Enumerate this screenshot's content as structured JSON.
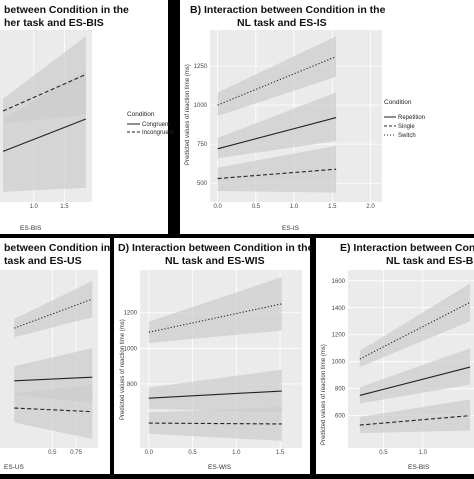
{
  "figure": {
    "legends": [
      {
        "title": "Condition",
        "entries": [
          "Congruent",
          "Incongruent"
        ]
      },
      {
        "title": "Condition",
        "entries": [
          "Repetition",
          "Single",
          "Switch"
        ]
      }
    ]
  },
  "colors": {
    "background": "#000000",
    "card": "#ffffff",
    "plot_bg": "#ebebeb",
    "band": "#cccccc",
    "line": "#222222",
    "grid": "#ffffff"
  },
  "chart_data": [
    {
      "type": "line",
      "title_lines": [
        "between Condition in the",
        "her task and ES-BIS"
      ],
      "xlabel": "ES-BIS",
      "ylabel": "",
      "x_ticks": [
        "1.0",
        "1.5"
      ],
      "y_ticks": [],
      "series": [
        {
          "name": "Congruent",
          "dash": "solid",
          "points": [
            [
              0.5,
              700
            ],
            [
              1.85,
              860
            ]
          ],
          "band_lo": [
            500,
            520
          ],
          "band_hi": [
            860,
            1100
          ]
        },
        {
          "name": "Incongruent",
          "dash": "dashed",
          "points": [
            [
              0.5,
              900
            ],
            [
              1.85,
              1080
            ]
          ],
          "band_lo": [
            840,
            880
          ],
          "band_hi": [
            960,
            1270
          ]
        }
      ]
    },
    {
      "type": "line",
      "title_lines": [
        "B) Interaction between Condition in the",
        "NL task and ES-IS"
      ],
      "xlabel": "ES-IS",
      "ylabel": "Predicted values of reaction time (ms)",
      "x_ticks": [
        "0.0",
        "0.5",
        "1.0",
        "1.5",
        "2.0"
      ],
      "y_ticks": [
        "500",
        "750",
        "1000",
        "1250"
      ],
      "series": [
        {
          "name": "Repetition",
          "dash": "solid",
          "points": [
            [
              0,
              720
            ],
            [
              1.55,
              920
            ]
          ],
          "band_lo": [
            660,
            770
          ],
          "band_hi": [
            790,
            1080
          ]
        },
        {
          "name": "Single",
          "dash": "dashed",
          "points": [
            [
              0,
              530
            ],
            [
              1.55,
              590
            ]
          ],
          "band_lo": [
            450,
            440
          ],
          "band_hi": [
            600,
            740
          ]
        },
        {
          "name": "Switch",
          "dash": "dotted",
          "points": [
            [
              0,
              1000
            ],
            [
              1.55,
              1310
            ]
          ],
          "band_lo": [
            930,
            1180
          ],
          "band_hi": [
            1080,
            1440
          ]
        }
      ]
    },
    {
      "type": "line",
      "title_lines": [
        "between Condition in the",
        "task and ES-US"
      ],
      "xlabel": "ES-US",
      "ylabel": "",
      "x_ticks": [
        "0.5",
        "0.75"
      ],
      "y_ticks": [],
      "series": [
        {
          "name": "Switch",
          "dash": "dotted",
          "points": [
            [
              0.1,
              1010
            ],
            [
              0.92,
              1170
            ]
          ],
          "band_lo": [
            960,
            1070
          ],
          "band_hi": [
            1060,
            1270
          ]
        },
        {
          "name": "Repetition",
          "dash": "solid",
          "points": [
            [
              0.1,
              720
            ],
            [
              0.92,
              740
            ]
          ],
          "band_lo": [
            640,
            600
          ],
          "band_hi": [
            800,
            900
          ]
        },
        {
          "name": "Single",
          "dash": "dashed",
          "points": [
            [
              0.1,
              570
            ],
            [
              0.92,
              550
            ]
          ],
          "band_lo": [
            490,
            400
          ],
          "band_hi": [
            650,
            700
          ]
        }
      ]
    },
    {
      "type": "line",
      "title_lines": [
        "D) Interaction between Condition in the",
        "NL task and ES-WIS"
      ],
      "xlabel": "ES-WIS",
      "ylabel": "Predicted values of reaction time (ms)",
      "x_ticks": [
        "0.0",
        "0.5",
        "1.0",
        "1.5"
      ],
      "y_ticks": [
        "800",
        "1000",
        "1200"
      ],
      "series": [
        {
          "name": "Switch",
          "dash": "dotted",
          "points": [
            [
              0,
              1090
            ],
            [
              1.52,
              1250
            ]
          ],
          "band_lo": [
            1030,
            1100
          ],
          "band_hi": [
            1150,
            1400
          ]
        },
        {
          "name": "Repetition",
          "dash": "solid",
          "points": [
            [
              0,
              720
            ],
            [
              1.52,
              760
            ]
          ],
          "band_lo": [
            660,
            640
          ],
          "band_hi": [
            780,
            880
          ]
        },
        {
          "name": "Single",
          "dash": "dashed",
          "points": [
            [
              0,
              580
            ],
            [
              1.52,
              575
            ]
          ],
          "band_lo": [
            520,
            480
          ],
          "band_hi": [
            640,
            670
          ]
        }
      ]
    },
    {
      "type": "line",
      "title_lines": [
        "E) Interaction between Conditi",
        "NL task and ES-BIS"
      ],
      "xlabel": "ES-BIS",
      "ylabel": "Predicted values of reaction time (ms)",
      "x_ticks": [
        "0.5",
        "1.0"
      ],
      "y_ticks": [
        "600",
        "800",
        "1000",
        "1200",
        "1400",
        "1600"
      ],
      "series": [
        {
          "name": "Switch",
          "dash": "dotted",
          "points": [
            [
              0.2,
              1020
            ],
            [
              1.6,
              1440
            ]
          ],
          "band_lo": [
            960,
            1300
          ],
          "band_hi": [
            1080,
            1580
          ]
        },
        {
          "name": "Repetition",
          "dash": "solid",
          "points": [
            [
              0.2,
              750
            ],
            [
              1.6,
              960
            ]
          ],
          "band_lo": [
            690,
            830
          ],
          "band_hi": [
            810,
            1100
          ]
        },
        {
          "name": "Single",
          "dash": "dashed",
          "points": [
            [
              0.2,
              530
            ],
            [
              1.6,
              600
            ]
          ],
          "band_lo": [
            470,
            490
          ],
          "band_hi": [
            590,
            720
          ]
        }
      ]
    }
  ]
}
